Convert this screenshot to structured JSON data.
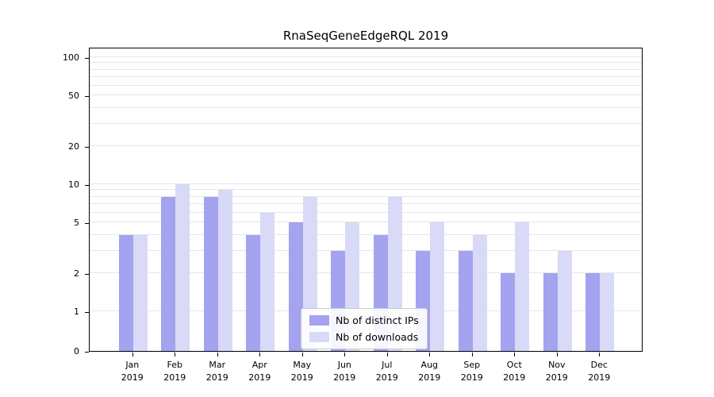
{
  "chart_data": {
    "type": "bar",
    "title": "RnaSeqGeneEdgeRQL 2019",
    "categories": [
      "Jan",
      "Feb",
      "Mar",
      "Apr",
      "May",
      "Jun",
      "Jul",
      "Aug",
      "Sep",
      "Oct",
      "Nov",
      "Dec"
    ],
    "year": "2019",
    "series": [
      {
        "name": "Nb of distinct IPs",
        "color": "#a3a3ef",
        "values": [
          4,
          8,
          8,
          4,
          5,
          3,
          4,
          3,
          3,
          2,
          2,
          2
        ]
      },
      {
        "name": "Nb of downloads",
        "color": "#d9d9f8",
        "values": [
          4,
          10,
          9,
          6,
          8,
          5,
          8,
          5,
          4,
          5,
          3,
          2
        ]
      }
    ],
    "yticks": [
      0,
      1,
      2,
      5,
      10,
      20,
      50,
      100
    ],
    "ylim": [
      0,
      100
    ],
    "yscale": "symlog",
    "grid": "horizontal",
    "gridcolor": "#e6e6e6",
    "legend_position": "lower-center-inside",
    "background": "#ffffff"
  }
}
